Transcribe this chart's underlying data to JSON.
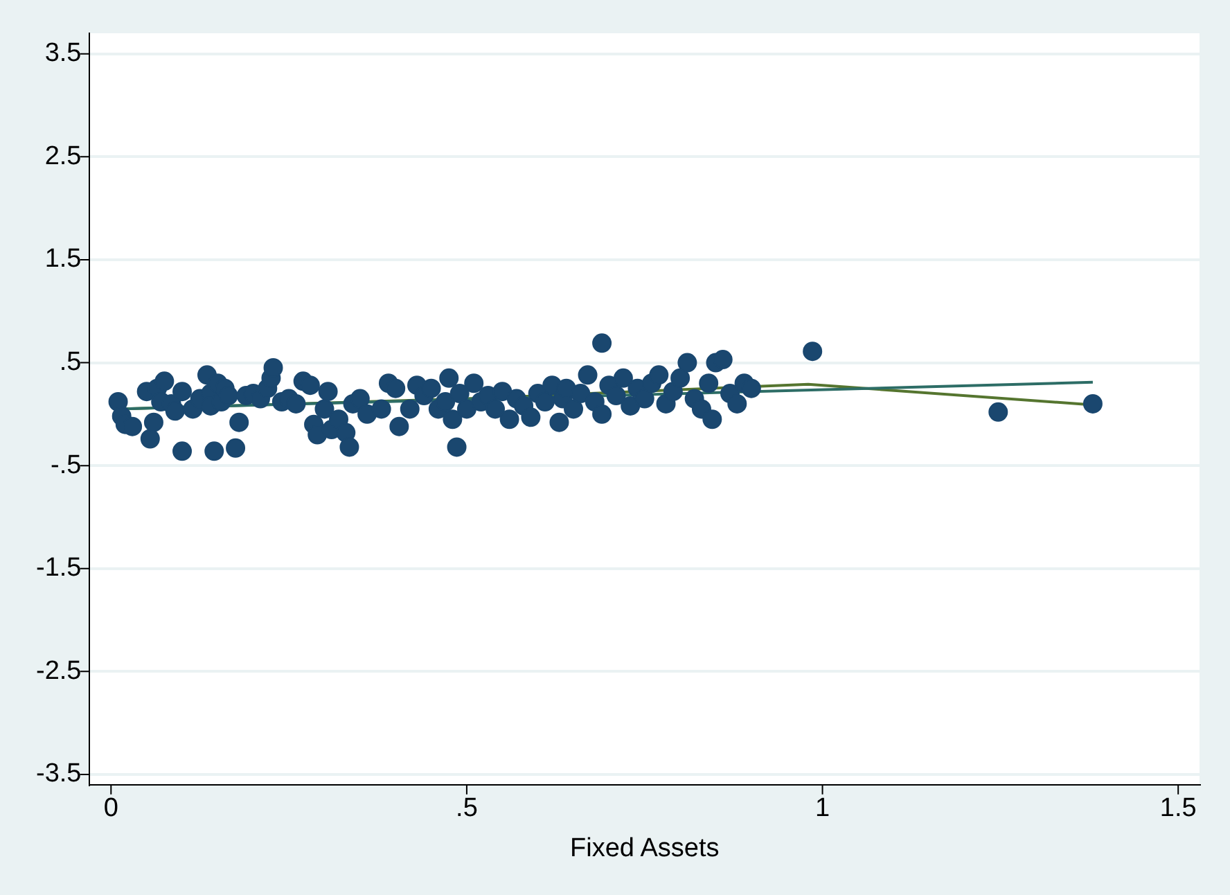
{
  "chart_data": {
    "type": "scatter",
    "xlabel": "Fixed Assets",
    "xlim": [
      -0.03,
      1.53
    ],
    "xticks": [
      0,
      {
        "value": 0.5,
        "label": ".5"
      },
      1,
      1.5
    ],
    "ylim": [
      -3.6,
      3.7
    ],
    "yticks": [
      -3.5,
      -2.5,
      -1.5,
      {
        "value": -0.5,
        "label": "-.5"
      },
      {
        "value": 0.5,
        "label": ".5"
      },
      1.5,
      2.5,
      3.5
    ],
    "grid": "y",
    "legend": false,
    "marker": "circle",
    "series": [
      {
        "type": "scatter",
        "color": "#1a476f",
        "x": [
          0.01,
          0.015,
          0.02,
          0.03,
          0.05,
          0.055,
          0.06,
          0.065,
          0.07,
          0.075,
          0.085,
          0.09,
          0.1,
          0.1,
          0.115,
          0.125,
          0.135,
          0.14,
          0.14,
          0.145,
          0.15,
          0.155,
          0.16,
          0.165,
          0.175,
          0.18,
          0.19,
          0.2,
          0.21,
          0.22,
          0.225,
          0.228,
          0.24,
          0.25,
          0.26,
          0.27,
          0.28,
          0.285,
          0.29,
          0.3,
          0.305,
          0.31,
          0.32,
          0.33,
          0.335,
          0.34,
          0.35,
          0.36,
          0.38,
          0.39,
          0.4,
          0.405,
          0.42,
          0.43,
          0.44,
          0.45,
          0.46,
          0.47,
          0.475,
          0.48,
          0.486,
          0.49,
          0.5,
          0.51,
          0.52,
          0.53,
          0.54,
          0.55,
          0.56,
          0.57,
          0.58,
          0.59,
          0.6,
          0.61,
          0.62,
          0.63,
          0.635,
          0.64,
          0.65,
          0.66,
          0.67,
          0.68,
          0.69,
          0.69,
          0.7,
          0.71,
          0.72,
          0.73,
          0.74,
          0.75,
          0.76,
          0.77,
          0.78,
          0.79,
          0.8,
          0.81,
          0.82,
          0.83,
          0.84,
          0.845,
          0.85,
          0.86,
          0.87,
          0.88,
          0.89,
          0.9,
          0.986,
          1.247,
          1.38
        ],
        "values": [
          0.12,
          -0.02,
          -0.1,
          -0.12,
          0.22,
          -0.24,
          -0.08,
          0.25,
          0.12,
          0.32,
          0.1,
          0.03,
          0.22,
          -0.36,
          0.05,
          0.15,
          0.38,
          0.2,
          0.08,
          -0.36,
          0.3,
          0.12,
          0.25,
          0.18,
          -0.33,
          -0.08,
          0.18,
          0.2,
          0.15,
          0.25,
          0.35,
          0.45,
          0.12,
          0.15,
          0.1,
          0.32,
          0.28,
          -0.1,
          -0.2,
          0.05,
          0.22,
          -0.15,
          -0.05,
          -0.18,
          -0.32,
          0.1,
          0.15,
          0.0,
          0.05,
          0.3,
          0.25,
          -0.12,
          0.05,
          0.28,
          0.18,
          0.25,
          0.05,
          0.12,
          0.35,
          -0.05,
          -0.32,
          0.2,
          0.05,
          0.3,
          0.12,
          0.18,
          0.05,
          0.22,
          -0.05,
          0.15,
          0.08,
          -0.03,
          0.2,
          0.12,
          0.28,
          -0.08,
          0.15,
          0.25,
          0.05,
          0.2,
          0.38,
          0.12,
          0.69,
          0.0,
          0.28,
          0.18,
          0.35,
          0.08,
          0.25,
          0.15,
          0.3,
          0.38,
          0.1,
          0.22,
          0.35,
          0.5,
          0.15,
          0.05,
          0.3,
          -0.05,
          0.5,
          0.53,
          0.2,
          0.1,
          0.3,
          0.25,
          0.61,
          0.02,
          0.1
        ]
      },
      {
        "type": "line",
        "color": "#2d6d66",
        "marker": "none",
        "x": [
          0.01,
          1.38
        ],
        "values": [
          0.05,
          0.31
        ]
      },
      {
        "type": "line",
        "color": "#55752f",
        "marker": "none",
        "x": [
          0.01,
          0.5,
          0.98,
          1.38
        ],
        "values": [
          0.05,
          0.15,
          0.29,
          0.09
        ]
      }
    ]
  }
}
